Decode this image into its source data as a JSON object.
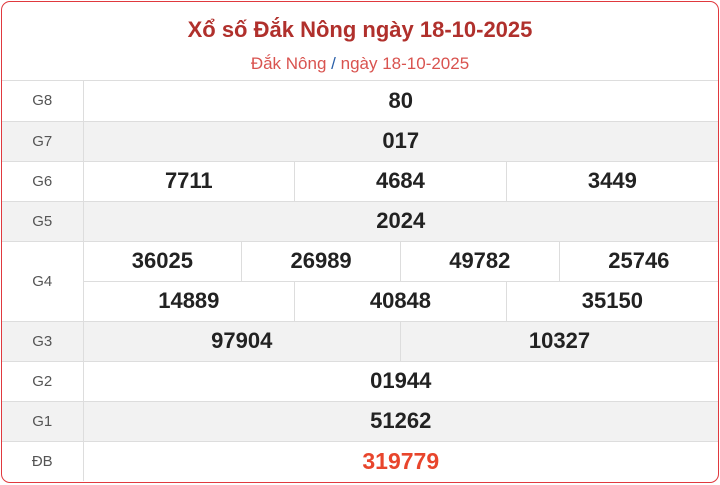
{
  "header": {
    "title": "Xổ số Đắk Nông ngày 18-10-2025",
    "breadcrumb_province": "Đắk Nông",
    "breadcrumb_sep": "/",
    "breadcrumb_date": "ngày 18-10-2025"
  },
  "prizes": {
    "g8": {
      "label": "G8",
      "values": [
        "80"
      ]
    },
    "g7": {
      "label": "G7",
      "values": [
        "017"
      ]
    },
    "g6": {
      "label": "G6",
      "values": [
        "7711",
        "4684",
        "3449"
      ]
    },
    "g5": {
      "label": "G5",
      "values": [
        "2024"
      ]
    },
    "g4": {
      "label": "G4",
      "values": [
        "36025",
        "26989",
        "49782",
        "25746",
        "14889",
        "40848",
        "35150"
      ]
    },
    "g3": {
      "label": "G3",
      "values": [
        "97904",
        "10327"
      ]
    },
    "g2": {
      "label": "G2",
      "values": [
        "01944"
      ]
    },
    "g1": {
      "label": "G1",
      "values": [
        "51262"
      ]
    },
    "db": {
      "label": "ĐB",
      "values": [
        "319779"
      ]
    }
  },
  "colors": {
    "accent": "#b0302c",
    "special": "#e8452c",
    "border": "#e0393e"
  }
}
